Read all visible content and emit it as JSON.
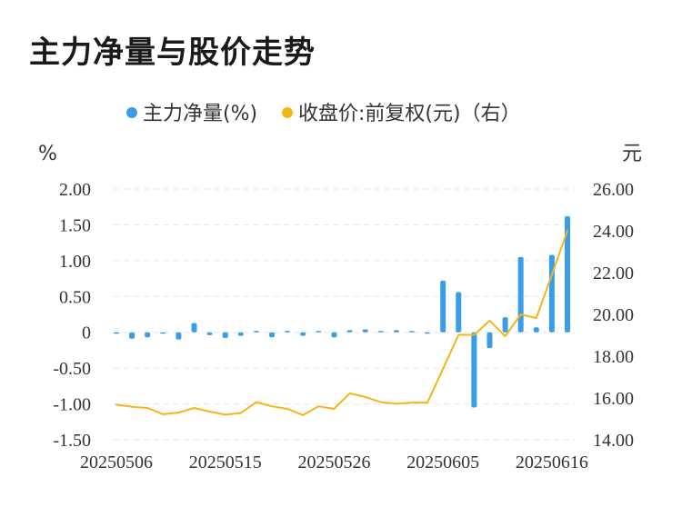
{
  "chart_data": {
    "type": "bar+line",
    "title": "主力净量与股价走势",
    "legend": {
      "position": "top",
      "items": [
        {
          "name": "主力净量(%)",
          "color": "#3a9de8"
        },
        {
          "name": "收盘价:前复权(元)（右）",
          "color": "#f5b519"
        }
      ]
    },
    "y_left": {
      "unit": "%",
      "min": -1.5,
      "max": 2.0,
      "ticks": [
        "2.00",
        "1.50",
        "1.00",
        "0.50",
        "0",
        "-0.50",
        "-1.00",
        "-1.50"
      ]
    },
    "y_right": {
      "unit": "元",
      "min": 14,
      "max": 26,
      "ticks": [
        "26.00",
        "24.00",
        "22.00",
        "20.00",
        "18.00",
        "16.00",
        "14.00"
      ]
    },
    "x_tick_labels": [
      "20250506",
      "20250515",
      "20250526",
      "20250605",
      "20250616"
    ],
    "x_tick_indices": [
      0,
      7,
      14,
      21,
      28
    ],
    "grid": true,
    "bar_color": "#3a9de8",
    "line_color": "#f5b519",
    "series": [
      {
        "name": "主力净量(%)",
        "kind": "bar",
        "values": [
          -0.01,
          -0.09,
          -0.07,
          -0.01,
          -0.1,
          0.13,
          -0.04,
          -0.08,
          -0.05,
          0.02,
          -0.07,
          0.02,
          -0.05,
          0.0,
          -0.07,
          0.03,
          0.04,
          0.0,
          0.03,
          0.0,
          -0.01,
          0.72,
          0.56,
          -1.05,
          -0.22,
          0.21,
          1.05,
          0.07,
          1.08,
          1.62
        ]
      },
      {
        "name": "收盘价:前复权(元)（右）",
        "kind": "line",
        "values": [
          15.68,
          15.58,
          15.52,
          15.22,
          15.3,
          15.52,
          15.35,
          15.2,
          15.28,
          15.8,
          15.6,
          15.48,
          15.18,
          15.6,
          15.48,
          16.22,
          16.05,
          15.8,
          15.72,
          15.78,
          15.78,
          17.4,
          19.02,
          19.02,
          19.7,
          18.95,
          20.0,
          19.82,
          21.9,
          24.0
        ]
      }
    ]
  }
}
